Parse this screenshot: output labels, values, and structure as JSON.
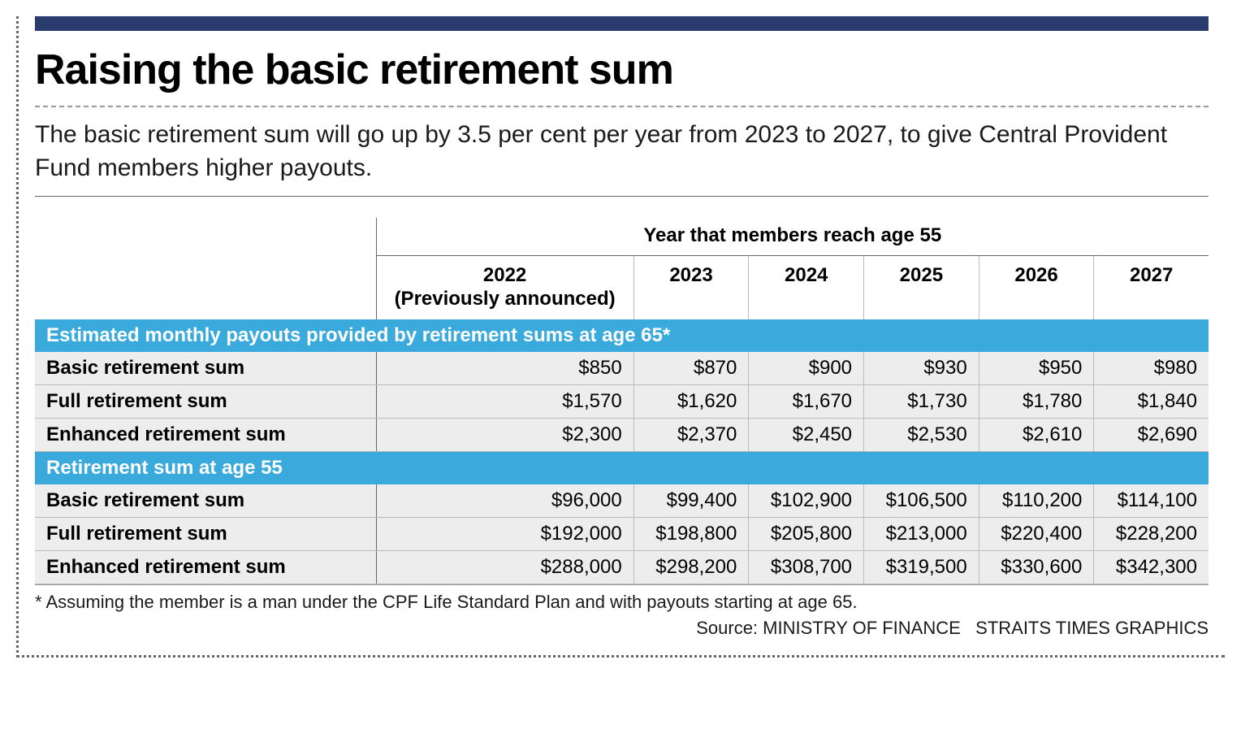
{
  "styling": {
    "top_bar_color": "#2a3b6e",
    "section_bg_color": "#3aa9db",
    "section_text_color": "#ffffff",
    "row_bg_color": "#ededed",
    "border_color": "#666666",
    "cell_border_color": "#bbbbbb",
    "dotted_border_color": "#666666",
    "title_fontsize": 52,
    "subtitle_fontsize": 30,
    "table_fontsize": 24,
    "footnote_fontsize": 22
  },
  "header": {
    "title": "Raising the basic retirement sum",
    "subtitle": "The basic retirement sum will go up by 3.5 per cent per year from 2023 to 2027, to give Central Provident Fund members higher payouts."
  },
  "table": {
    "super_header": "Year that members reach age 55",
    "columns": [
      {
        "year": "2022",
        "sub": "(Previously announced)"
      },
      {
        "year": "2023",
        "sub": ""
      },
      {
        "year": "2024",
        "sub": ""
      },
      {
        "year": "2025",
        "sub": ""
      },
      {
        "year": "2026",
        "sub": ""
      },
      {
        "year": "2027",
        "sub": ""
      }
    ],
    "sections": [
      {
        "title": "Estimated monthly payouts provided by retirement sums at age 65*",
        "rows": [
          {
            "label": "Basic retirement sum",
            "values": [
              "$850",
              "$870",
              "$900",
              "$930",
              "$950",
              "$980"
            ]
          },
          {
            "label": "Full retirement sum",
            "values": [
              "$1,570",
              "$1,620",
              "$1,670",
              "$1,730",
              "$1,780",
              "$1,840"
            ]
          },
          {
            "label": "Enhanced retirement sum",
            "values": [
              "$2,300",
              "$2,370",
              "$2,450",
              "$2,530",
              "$2,610",
              "$2,690"
            ]
          }
        ]
      },
      {
        "title": "Retirement sum at age 55",
        "rows": [
          {
            "label": "Basic retirement sum",
            "values": [
              "$96,000",
              "$99,400",
              "$102,900",
              "$106,500",
              "$110,200",
              "$114,100"
            ]
          },
          {
            "label": "Full retirement sum",
            "values": [
              "$192,000",
              "$198,800",
              "$205,800",
              "$213,000",
              "$220,400",
              "$228,200"
            ]
          },
          {
            "label": "Enhanced retirement sum",
            "values": [
              "$288,000",
              "$298,200",
              "$308,700",
              "$319,500",
              "$330,600",
              "$342,300"
            ]
          }
        ]
      }
    ]
  },
  "footnote": "* Assuming the member is a man under the CPF Life Standard Plan and with payouts starting at age 65.",
  "source": "Source: MINISTRY OF FINANCE   STRAITS TIMES GRAPHICS"
}
